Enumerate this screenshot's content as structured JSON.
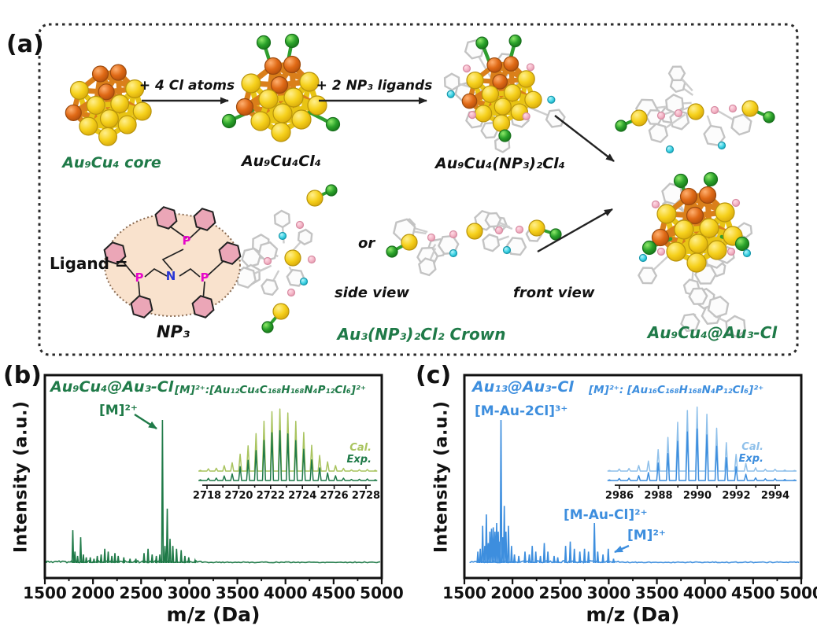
{
  "palette": {
    "green_text": "#1f7a48",
    "blue_text": "#3d8ede",
    "cal_green": "#a9c45f",
    "cal_blue": "#8fc0ea",
    "axis_black": "#111111",
    "au_yellow": "#f6d11c",
    "cu_orange": "#e06a16",
    "cl_green": "#2ba32b",
    "p_pink": "#f3b5c6",
    "n_cyan": "#3fd4e6",
    "carbon_gray": "#c9c9c9",
    "ligand_oval_fill": "#f9e2cd",
    "p_magenta": "#e607c9",
    "n_blue": "#2836d6"
  },
  "figure": {
    "panel_a": {
      "tag": "(a)",
      "core_label": "Au₉Cu₄ core",
      "step1_label": "+ 4 Cl atoms",
      "product1_label": "Au₉Cu₄Cl₄",
      "step2_label": "+ 2 NP₃ ligands",
      "product2_label": "Au₉Cu₄(NP₃)₂Cl₄",
      "ligand_prefix": "Ligand =",
      "ligand_name": "NP₃",
      "ligand_atoms": {
        "P": "P",
        "N": "N"
      },
      "or_label": "or",
      "side_view_label": "side view",
      "front_view_label": "front view",
      "crown_label": "Au₃(NP₃)₂Cl₂ Crown",
      "final_label": "Au₉Cu₄@Au₃-Cl"
    },
    "panel_b": {
      "tag": "(b)"
    },
    "panel_c": {
      "tag": "(c)"
    }
  },
  "chart_data": [
    {
      "id": "b_main",
      "type": "line",
      "panel": "(b)",
      "title": "Au₉Cu₄@Au₃-Cl",
      "xlabel": "m/z (Da)",
      "ylabel": "Intensity (a.u.)",
      "xlim": [
        1500,
        5000
      ],
      "xticks": [
        1500,
        2000,
        2500,
        3000,
        3500,
        4000,
        4500,
        5000
      ],
      "color": "#1f7a48",
      "annotations": [
        {
          "text": "[M]²⁺",
          "mz": 2722
        }
      ],
      "peaks": [
        [
          1790,
          0.23
        ],
        [
          1812,
          0.08
        ],
        [
          1840,
          0.05
        ],
        [
          1872,
          0.18
        ],
        [
          1900,
          0.06
        ],
        [
          1930,
          0.04
        ],
        [
          1972,
          0.04
        ],
        [
          2010,
          0.03
        ],
        [
          2045,
          0.05
        ],
        [
          2085,
          0.06
        ],
        [
          2122,
          0.1
        ],
        [
          2158,
          0.08
        ],
        [
          2196,
          0.05
        ],
        [
          2228,
          0.07
        ],
        [
          2262,
          0.05
        ],
        [
          2320,
          0.04
        ],
        [
          2385,
          0.03
        ],
        [
          2445,
          0.03
        ],
        [
          2530,
          0.07
        ],
        [
          2572,
          0.1
        ],
        [
          2615,
          0.06
        ],
        [
          2658,
          0.05
        ],
        [
          2695,
          0.06
        ],
        [
          2722,
          1.0
        ],
        [
          2748,
          0.12
        ],
        [
          2772,
          0.38
        ],
        [
          2800,
          0.17
        ],
        [
          2830,
          0.12
        ],
        [
          2868,
          0.1
        ],
        [
          2916,
          0.09
        ],
        [
          2955,
          0.05
        ],
        [
          2995,
          0.04
        ],
        [
          3060,
          0.02
        ]
      ]
    },
    {
      "id": "b_inset",
      "type": "line",
      "title": "[M]²⁺:[Au₁₂Cu₄C₁₆₈H₁₆₈N₄P₁₂Cl₆]²⁺",
      "xlim": [
        2718,
        2728
      ],
      "xticks": [
        2718,
        2720,
        2722,
        2724,
        2726,
        2728
      ],
      "series": [
        {
          "name": "Cal.",
          "color": "#a9c45f"
        },
        {
          "name": "Exp.",
          "color": "#1f7a48"
        }
      ],
      "isotope": {
        "start_mz": 2719.1,
        "spacing": 0.5,
        "count": 17,
        "center_mz": 2722.6,
        "sigma": 1.5
      }
    },
    {
      "id": "c_main",
      "type": "line",
      "panel": "(c)",
      "title": "Au₁₃@Au₃-Cl",
      "xlabel": "m/z (Da)",
      "ylabel": "Intensity (a.u.)",
      "xlim": [
        1500,
        5000
      ],
      "xticks": [
        1500,
        2000,
        2500,
        3000,
        3500,
        4000,
        4500,
        5000
      ],
      "color": "#3d8ede",
      "annotations": [
        {
          "text": "[M-Au-2Cl]³⁺",
          "mz": 1880
        },
        {
          "text": "[M-Au-Cl]²⁺",
          "mz": 2851
        },
        {
          "text": "[M]²⁺",
          "mz": 2995
        }
      ],
      "peaks": [
        [
          1640,
          0.08
        ],
        [
          1665,
          0.1
        ],
        [
          1690,
          0.26
        ],
        [
          1712,
          0.12
        ],
        [
          1728,
          0.34
        ],
        [
          1748,
          0.14
        ],
        [
          1765,
          0.22
        ],
        [
          1782,
          0.24
        ],
        [
          1800,
          0.25
        ],
        [
          1818,
          0.22
        ],
        [
          1835,
          0.28
        ],
        [
          1852,
          0.22
        ],
        [
          1868,
          0.15
        ],
        [
          1880,
          1.0
        ],
        [
          1900,
          0.18
        ],
        [
          1915,
          0.4
        ],
        [
          1932,
          0.22
        ],
        [
          1958,
          0.26
        ],
        [
          1990,
          0.12
        ],
        [
          2020,
          0.06
        ],
        [
          2065,
          0.05
        ],
        [
          2130,
          0.08
        ],
        [
          2175,
          0.06
        ],
        [
          2205,
          0.12
        ],
        [
          2242,
          0.08
        ],
        [
          2290,
          0.05
        ],
        [
          2330,
          0.14
        ],
        [
          2368,
          0.08
        ],
        [
          2432,
          0.05
        ],
        [
          2470,
          0.04
        ],
        [
          2552,
          0.12
        ],
        [
          2600,
          0.15
        ],
        [
          2642,
          0.1
        ],
        [
          2700,
          0.08
        ],
        [
          2748,
          0.1
        ],
        [
          2790,
          0.08
        ],
        [
          2851,
          0.28
        ],
        [
          2885,
          0.08
        ],
        [
          2940,
          0.06
        ],
        [
          2995,
          0.1
        ],
        [
          3050,
          0.03
        ]
      ]
    },
    {
      "id": "c_inset",
      "type": "line",
      "title": "[M]²⁺: [Au₁₆C₁₆₈H₁₆₈N₄P₁₂Cl₆]²⁺",
      "xlim": [
        2986,
        2994
      ],
      "xticks": [
        2986,
        2988,
        2990,
        2992,
        2994
      ],
      "series": [
        {
          "name": "Cal.",
          "color": "#8fc0ea"
        },
        {
          "name": "Exp.",
          "color": "#3d8ede"
        }
      ],
      "isotope": {
        "start_mz": 2987.0,
        "spacing": 0.5,
        "count": 14,
        "center_mz": 2989.9,
        "sigma": 1.25
      }
    }
  ]
}
